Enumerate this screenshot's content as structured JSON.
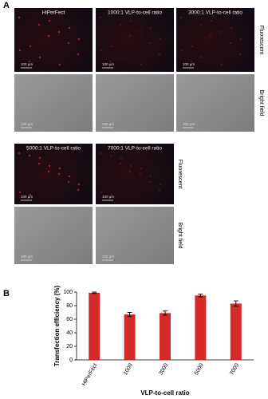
{
  "panel_a": {
    "label": "A",
    "groups": [
      {
        "row_labels": [
          "Fluorescent",
          "Bright field"
        ],
        "captions": [
          "HiPerFect",
          "1000:1 VLP-to-cell ratio",
          "3000:1 VLP-to-cell ratio"
        ],
        "scales": [
          "100 µm",
          "100 µm",
          "100 µm",
          "100 µm",
          "100 µm",
          "100 µm"
        ]
      },
      {
        "row_labels": [
          "Fluorescent",
          "Bright field"
        ],
        "captions": [
          "5000:1 VLP-to-cell ratio",
          "7000:1 VLP-to-cell ratio"
        ],
        "scales": [
          "100 µm",
          "100 µm",
          "100 µm",
          "100 µm"
        ]
      }
    ]
  },
  "chart_data": {
    "type": "bar",
    "panel_label": "B",
    "xlabel": "VLP-to-cell ratio",
    "ylabel": "Transfection efficiency (%)",
    "categories": [
      "HiPerFect",
      "1000",
      "3000",
      "5000",
      "7000"
    ],
    "values": [
      99,
      67,
      69,
      95,
      83
    ],
    "errors": [
      1,
      3,
      3,
      2,
      4
    ],
    "color": "#d42a2a",
    "ylim": [
      0,
      100
    ],
    "yticks": [
      0,
      20,
      40,
      60,
      80,
      100
    ]
  }
}
